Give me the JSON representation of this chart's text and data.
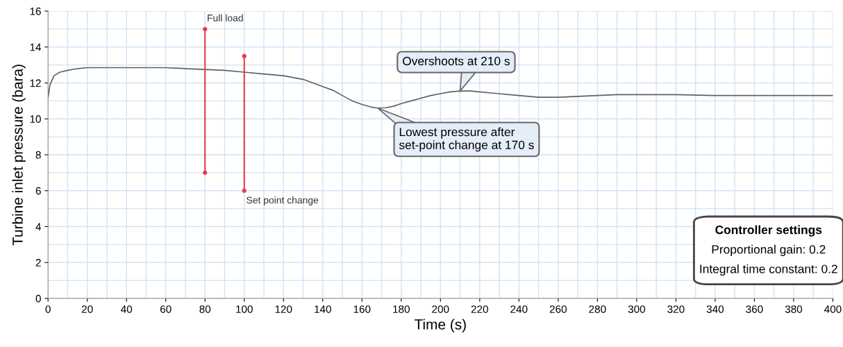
{
  "chart_data": {
    "type": "line",
    "xlabel": "Time (s)",
    "ylabel": "Turbine inlet pressure (bara)",
    "xlim": [
      0,
      400
    ],
    "ylim": [
      0,
      16
    ],
    "xticks": [
      0,
      20,
      40,
      60,
      80,
      100,
      120,
      140,
      160,
      180,
      200,
      220,
      240,
      260,
      280,
      300,
      320,
      340,
      360,
      380,
      400
    ],
    "yticks": [
      0,
      2,
      4,
      6,
      8,
      10,
      12,
      14,
      16
    ],
    "grid": true,
    "series": [
      {
        "color": "#606060",
        "marker": "none",
        "x": [
          0,
          1,
          3,
          6,
          10,
          15,
          20,
          40,
          60,
          70,
          80,
          90,
          100,
          110,
          120,
          130,
          135,
          140,
          145,
          150,
          155,
          160,
          165,
          168,
          172,
          176,
          180,
          185,
          190,
          195,
          200,
          205,
          210,
          215,
          220,
          225,
          230,
          235,
          240,
          245,
          250,
          255,
          260,
          270,
          280,
          290,
          300,
          320,
          340,
          360,
          380,
          400
        ],
        "values": [
          11.2,
          11.9,
          12.4,
          12.6,
          12.7,
          12.8,
          12.85,
          12.85,
          12.85,
          12.8,
          12.75,
          12.7,
          12.6,
          12.5,
          12.4,
          12.2,
          12.0,
          11.8,
          11.6,
          11.3,
          11.0,
          10.8,
          10.65,
          10.6,
          10.62,
          10.7,
          10.85,
          11.0,
          11.15,
          11.3,
          11.4,
          11.5,
          11.55,
          11.55,
          11.5,
          11.45,
          11.4,
          11.35,
          11.3,
          11.25,
          11.2,
          11.2,
          11.2,
          11.25,
          11.3,
          11.35,
          11.35,
          11.35,
          11.3,
          11.3,
          11.3,
          11.3
        ]
      },
      {
        "type": "line",
        "color": "#e8394a",
        "marker": "circle",
        "x": [
          80,
          80
        ],
        "values": [
          7,
          15
        ]
      },
      {
        "type": "line",
        "color": "#e8394a",
        "marker": "circle",
        "x": [
          100,
          100
        ],
        "values": [
          6,
          13.5
        ]
      }
    ],
    "annotations": [
      {
        "text": "Full load",
        "x": 80,
        "y": 15
      },
      {
        "text": "Set point change",
        "x": 100,
        "y": 6
      },
      {
        "text": "Overshoots at 210 s",
        "x": 210,
        "y": 11.55
      },
      {
        "text": "Lowest pressure after\nset-point change at 170 s",
        "x": 168,
        "y": 10.6
      },
      "Controller settings",
      "Proportional gain: 0.2",
      "Integral time constant: 0.2"
    ]
  }
}
